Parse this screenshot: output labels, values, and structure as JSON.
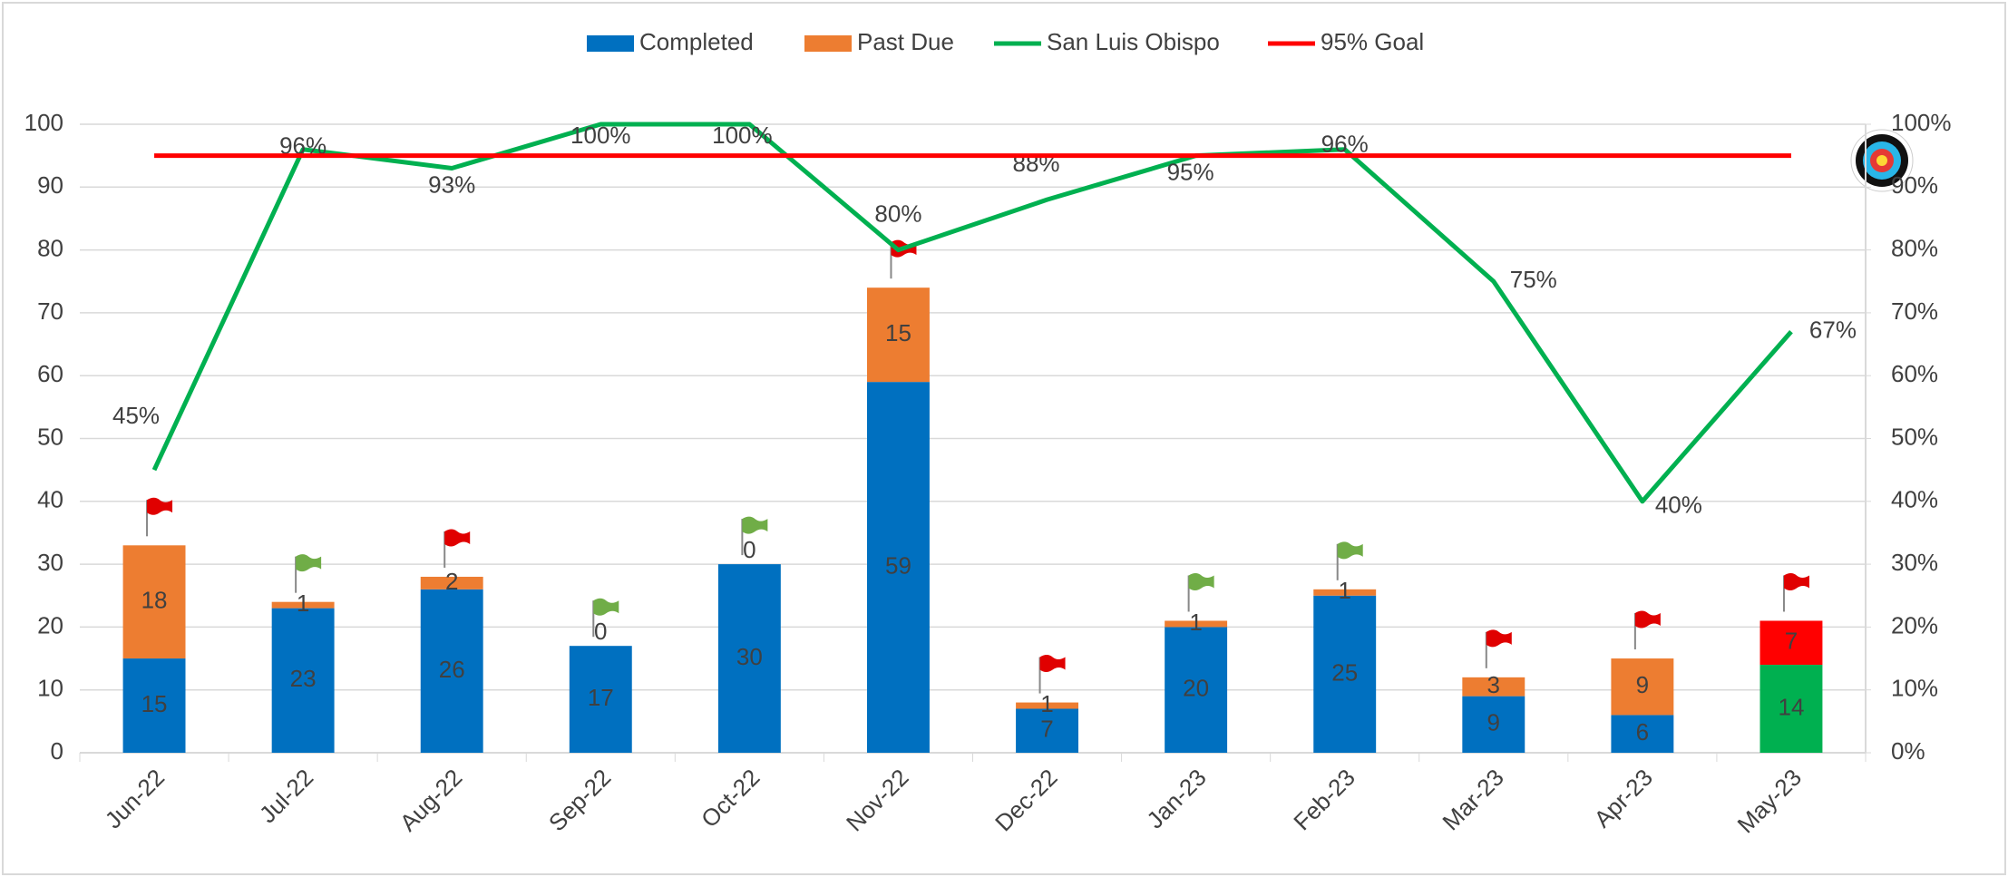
{
  "chart_data": {
    "type": "combo",
    "categories": [
      "Jun-22",
      "Jul-22",
      "Aug-22",
      "Sep-22",
      "Oct-22",
      "Nov-22",
      "Dec-22",
      "Jan-23",
      "Feb-23",
      "Mar-23",
      "Apr-23",
      "May-23"
    ],
    "series": [
      {
        "name": "Completed",
        "type": "bar",
        "color": "#0070c0",
        "colors": [
          "#0070c0",
          "#0070c0",
          "#0070c0",
          "#0070c0",
          "#0070c0",
          "#0070c0",
          "#0070c0",
          "#0070c0",
          "#0070c0",
          "#0070c0",
          "#0070c0",
          "#00b050"
        ],
        "values": [
          15,
          23,
          26,
          17,
          30,
          59,
          7,
          20,
          25,
          9,
          6,
          14
        ]
      },
      {
        "name": "Past Due",
        "type": "bar",
        "color": "#ed7d31",
        "colors": [
          "#ed7d31",
          "#ed7d31",
          "#ed7d31",
          "#ed7d31",
          "#ed7d31",
          "#ed7d31",
          "#ed7d31",
          "#ed7d31",
          "#ed7d31",
          "#ed7d31",
          "#ed7d31",
          "#ff0000"
        ],
        "values": [
          18,
          1,
          2,
          0,
          0,
          15,
          1,
          1,
          1,
          3,
          9,
          7
        ]
      },
      {
        "name": "San Luis Obispo",
        "type": "line",
        "axis": "y2",
        "color": "#00b050",
        "values": [
          45,
          96,
          93,
          100,
          100,
          80,
          88,
          95,
          96,
          75,
          40,
          67
        ],
        "value_labels": [
          "45%",
          "96%",
          "93%",
          "100%",
          "100%",
          "80%",
          "88%",
          "95%",
          "96%",
          "75%",
          "40%",
          "67%"
        ]
      },
      {
        "name": "95% Goal",
        "type": "line",
        "axis": "y2",
        "color": "#ff0000",
        "values": [
          95,
          95,
          95,
          95,
          95,
          95,
          95,
          95,
          95,
          95,
          95,
          95
        ]
      }
    ],
    "flags": [
      "#e00000",
      "#70ad47",
      "#e00000",
      "#70ad47",
      "#70ad47",
      "#e00000",
      "#e00000",
      "#70ad47",
      "#70ad47",
      "#e00000",
      "#e00000",
      "#e00000"
    ],
    "ylim": [
      0,
      100
    ],
    "yticks": [
      0,
      10,
      20,
      30,
      40,
      50,
      60,
      70,
      80,
      90,
      100
    ],
    "y2lim": [
      0,
      100
    ],
    "y2ticks": [
      {
        "value": 0,
        "label": "0%"
      },
      {
        "value": 10,
        "label": "10%"
      },
      {
        "value": 20,
        "label": "20%"
      },
      {
        "value": 30,
        "label": "30%"
      },
      {
        "value": 40,
        "label": "40%"
      },
      {
        "value": 50,
        "label": "50%"
      },
      {
        "value": 60,
        "label": "60%"
      },
      {
        "value": 70,
        "label": "70%"
      },
      {
        "value": 80,
        "label": "80%"
      },
      {
        "value": 90,
        "label": "90%"
      },
      {
        "value": 100,
        "label": "100%"
      }
    ],
    "grid": true,
    "legend": "top"
  }
}
